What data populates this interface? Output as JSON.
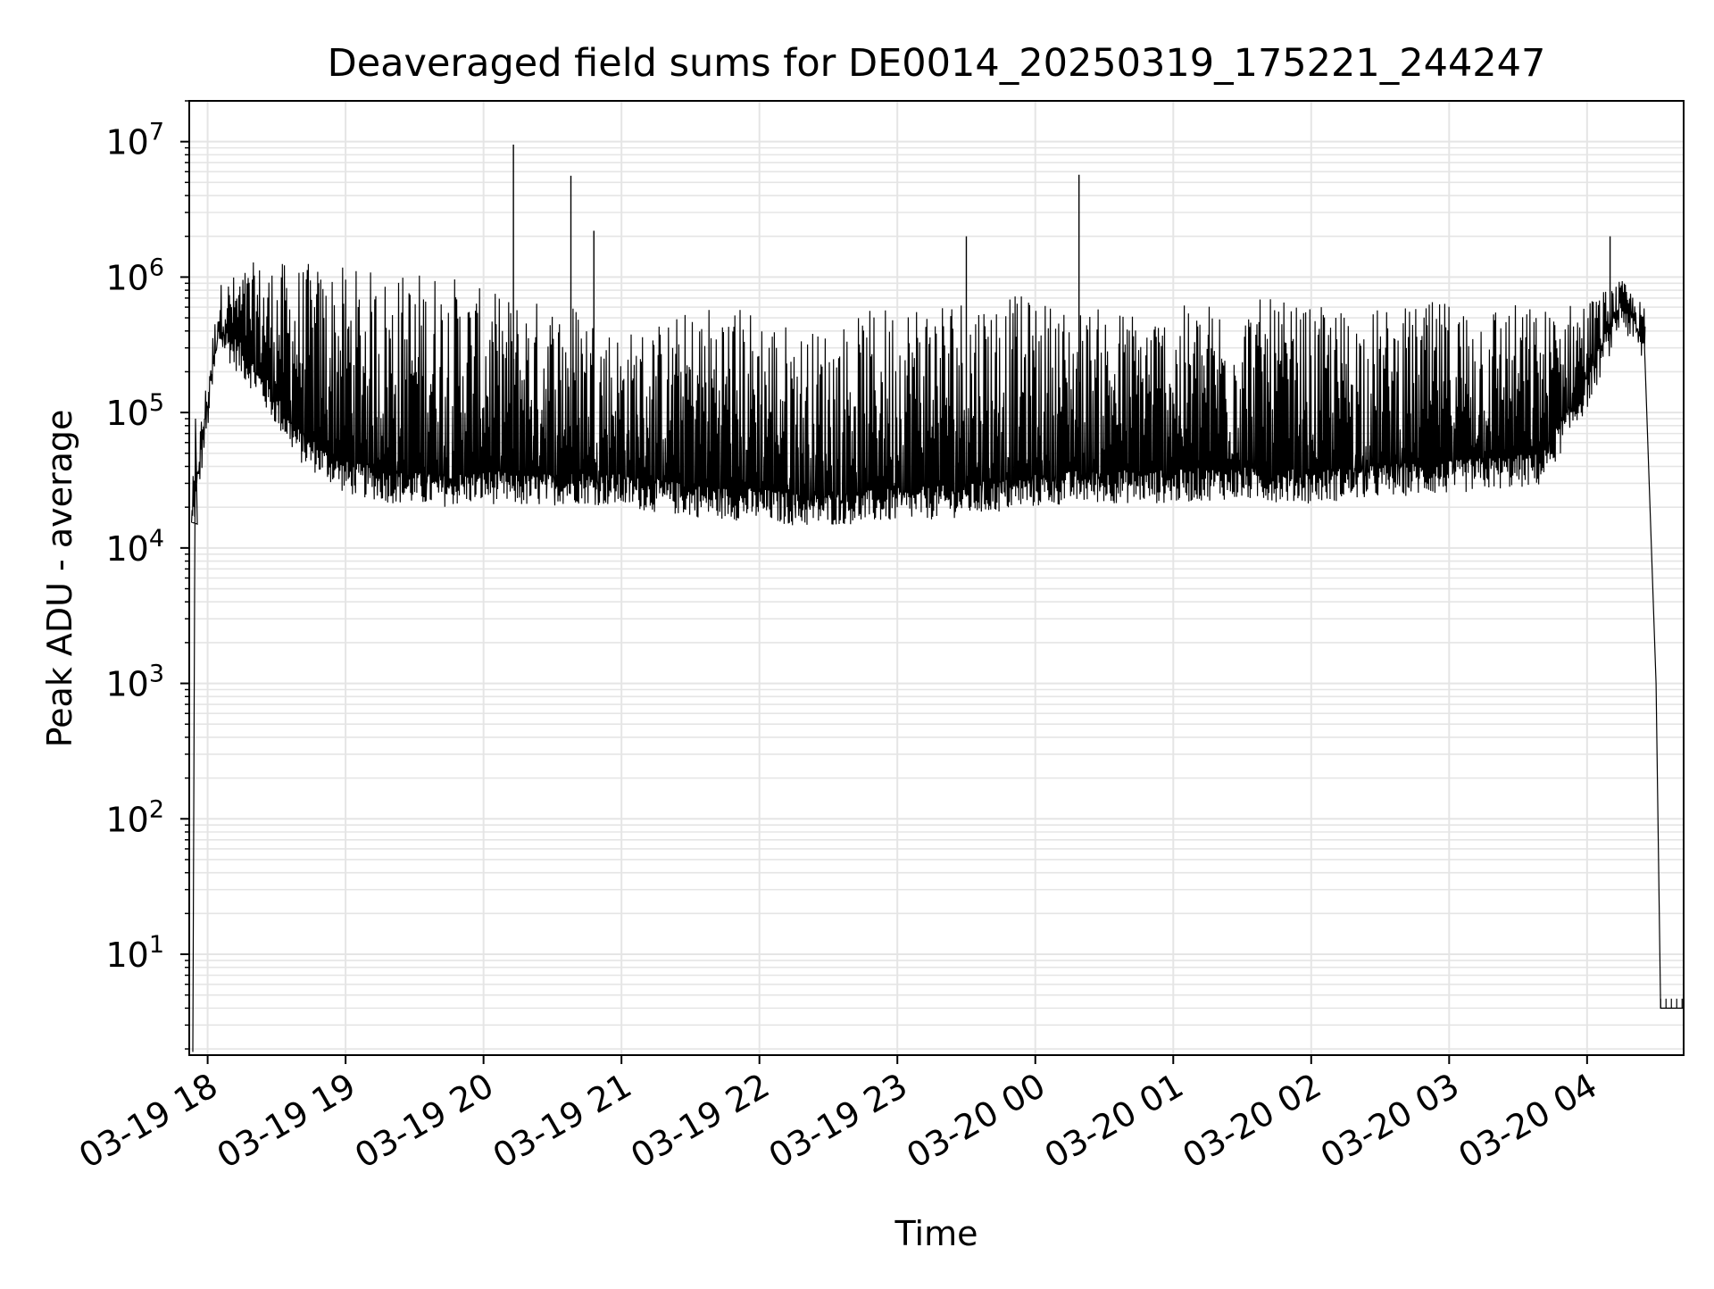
{
  "chart_data": {
    "type": "line",
    "title": "Deaveraged field sums for DE0014_20250319_175221_244247",
    "xlabel": "Time",
    "ylabel": "Peak ADU - average",
    "y_scale": "log",
    "ylim": [
      1.8,
      20000000
    ],
    "xlim": [
      "2025-03-19 17:52",
      "2025-03-20 04:42"
    ],
    "x_ticks": [
      "2025-03-19 18:00",
      "2025-03-19 19:00",
      "2025-03-19 20:00",
      "2025-03-19 21:00",
      "2025-03-19 22:00",
      "2025-03-19 23:00",
      "2025-03-20 00:00",
      "2025-03-20 01:00",
      "2025-03-20 02:00",
      "2025-03-20 03:00",
      "2025-03-20 04:00"
    ],
    "x_tick_labels": [
      "03-19 18",
      "03-19 19",
      "03-19 20",
      "03-19 21",
      "03-19 22",
      "03-19 23",
      "03-20 00",
      "03-20 01",
      "03-20 02",
      "03-20 03",
      "03-20 04"
    ],
    "y_tick_values": [
      10,
      100,
      1000,
      10000,
      100000,
      1000000,
      10000000
    ],
    "y_tick_base": "10",
    "y_tick_exponents": [
      "1",
      "2",
      "3",
      "4",
      "5",
      "6",
      "7"
    ],
    "grid": true,
    "line_color": "#000000",
    "grid_color": "#e5e5e5",
    "series": [
      {
        "envelope": {
          "x": [
            "2025-03-19 17:53",
            "2025-03-19 18:05",
            "2025-03-19 18:20",
            "2025-03-19 18:40",
            "2025-03-19 19:00",
            "2025-03-19 19:20",
            "2025-03-19 19:40",
            "2025-03-19 20:00",
            "2025-03-19 20:20",
            "2025-03-19 20:40",
            "2025-03-19 21:00",
            "2025-03-19 21:20",
            "2025-03-19 21:40",
            "2025-03-19 22:00",
            "2025-03-19 22:20",
            "2025-03-19 22:40",
            "2025-03-19 23:00",
            "2025-03-19 23:20",
            "2025-03-19 23:40",
            "2025-03-20 00:00",
            "2025-03-20 00:20",
            "2025-03-20 00:40",
            "2025-03-20 01:00",
            "2025-03-20 01:20",
            "2025-03-20 01:40",
            "2025-03-20 02:00",
            "2025-03-20 02:20",
            "2025-03-20 02:40",
            "2025-03-20 03:00",
            "2025-03-20 03:20",
            "2025-03-20 03:40",
            "2025-03-20 04:00",
            "2025-03-20 04:15",
            "2025-03-20 04:25"
          ],
          "base": [
            15000,
            400000,
            200000,
            60000,
            35000,
            30000,
            28000,
            30000,
            28000,
            30000,
            28000,
            25000,
            23000,
            22000,
            20000,
            21000,
            22000,
            23000,
            25000,
            28000,
            30000,
            30000,
            30000,
            32000,
            31000,
            30000,
            32000,
            34000,
            35000,
            38000,
            40000,
            150000,
            600000,
            300000
          ],
          "peak": [
            30000,
            900000,
            1300000,
            1300000,
            1200000,
            1100000,
            1200000,
            800000,
            700000,
            700000,
            400000,
            500000,
            700000,
            600000,
            400000,
            500000,
            700000,
            800000,
            800000,
            700000,
            600000,
            600000,
            600000,
            700000,
            700000,
            600000,
            600000,
            600000,
            700000,
            700000,
            600000,
            700000,
            950000,
            600000
          ]
        },
        "spikes": [
          {
            "x": "2025-03-19 20:13",
            "y": 9500000
          },
          {
            "x": "2025-03-19 20:38",
            "y": 5600000
          },
          {
            "x": "2025-03-20 00:19",
            "y": 5700000
          },
          {
            "x": "2025-03-19 20:48",
            "y": 2200000
          },
          {
            "x": "2025-03-19 23:30",
            "y": 2000000
          },
          {
            "x": "2025-03-20 04:10",
            "y": 2000000
          }
        ],
        "tail": [
          {
            "x": "2025-03-20 04:25",
            "y": 300000
          },
          {
            "x": "2025-03-20 04:30",
            "y": 1000
          },
          {
            "x": "2025-03-20 04:32",
            "y": 4
          },
          {
            "x": "2025-03-20 04:42",
            "y": 4
          }
        ]
      }
    ]
  }
}
